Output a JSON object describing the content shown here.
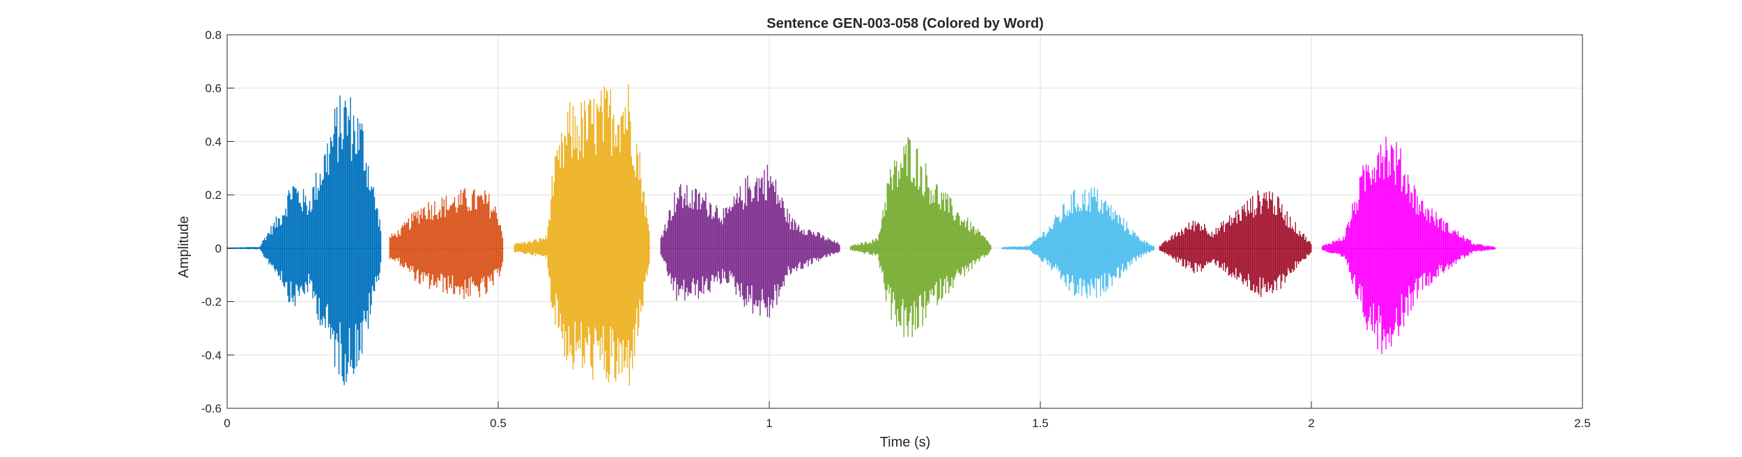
{
  "chart_data": {
    "type": "line",
    "title": "Sentence GEN-003-058 (Colored by Word)",
    "xlabel": "Time (s)",
    "ylabel": "Amplitude",
    "xlim": [
      0,
      2.5
    ],
    "ylim": [
      -0.6,
      0.8
    ],
    "xticks": [
      0,
      0.5,
      1,
      1.5,
      2,
      2.5
    ],
    "xtick_labels": [
      "0",
      "0.5",
      "1",
      "1.5",
      "2",
      "2.5"
    ],
    "yticks": [
      -0.6,
      -0.4,
      -0.2,
      0,
      0.2,
      0.4,
      0.6,
      0.8
    ],
    "ytick_labels": [
      "-0.6",
      "-0.4",
      "-0.2",
      "0",
      "0.2",
      "0.4",
      "0.6",
      "0.8"
    ],
    "grid": true,
    "series": [
      {
        "color": "#0072BD",
        "t_start": 0.0,
        "t_end": 0.285,
        "envelope": [
          [
            0.0,
            0.003
          ],
          [
            0.06,
            0.006
          ],
          [
            0.07,
            0.05
          ],
          [
            0.1,
            0.15
          ],
          [
            0.12,
            0.28
          ],
          [
            0.15,
            0.2
          ],
          [
            0.18,
            0.4
          ],
          [
            0.2,
            0.55
          ],
          [
            0.22,
            0.62
          ],
          [
            0.25,
            0.5
          ],
          [
            0.27,
            0.25
          ],
          [
            0.285,
            0.08
          ]
        ]
      },
      {
        "color": "#D95319",
        "t_start": 0.3,
        "t_end": 0.51,
        "envelope": [
          [
            0.3,
            0.05
          ],
          [
            0.32,
            0.08
          ],
          [
            0.36,
            0.18
          ],
          [
            0.4,
            0.2
          ],
          [
            0.44,
            0.23
          ],
          [
            0.48,
            0.22
          ],
          [
            0.5,
            0.15
          ],
          [
            0.51,
            0.05
          ]
        ]
      },
      {
        "color": "#EDB120",
        "t_start": 0.53,
        "t_end": 0.78,
        "envelope": [
          [
            0.53,
            0.02
          ],
          [
            0.56,
            0.03
          ],
          [
            0.59,
            0.05
          ],
          [
            0.6,
            0.3
          ],
          [
            0.63,
            0.55
          ],
          [
            0.66,
            0.57
          ],
          [
            0.7,
            0.62
          ],
          [
            0.74,
            0.65
          ],
          [
            0.76,
            0.4
          ],
          [
            0.78,
            0.05
          ]
        ]
      },
      {
        "color": "#7E2F8E",
        "t_start": 0.8,
        "t_end": 1.13,
        "envelope": [
          [
            0.8,
            0.05
          ],
          [
            0.83,
            0.25
          ],
          [
            0.88,
            0.22
          ],
          [
            0.92,
            0.15
          ],
          [
            0.96,
            0.28
          ],
          [
            1.0,
            0.33
          ],
          [
            1.04,
            0.12
          ],
          [
            1.1,
            0.05
          ],
          [
            1.13,
            0.02
          ]
        ]
      },
      {
        "color": "#77AC30",
        "t_start": 1.15,
        "t_end": 1.41,
        "envelope": [
          [
            1.15,
            0.01
          ],
          [
            1.2,
            0.04
          ],
          [
            1.22,
            0.3
          ],
          [
            1.26,
            0.45
          ],
          [
            1.3,
            0.28
          ],
          [
            1.35,
            0.15
          ],
          [
            1.4,
            0.04
          ],
          [
            1.41,
            0.01
          ]
        ]
      },
      {
        "color": "#4DBEEE",
        "t_start": 1.43,
        "t_end": 1.71,
        "envelope": [
          [
            1.43,
            0.005
          ],
          [
            1.48,
            0.01
          ],
          [
            1.52,
            0.1
          ],
          [
            1.56,
            0.22
          ],
          [
            1.6,
            0.24
          ],
          [
            1.64,
            0.15
          ],
          [
            1.68,
            0.05
          ],
          [
            1.71,
            0.01
          ]
        ]
      },
      {
        "color": "#A2142F",
        "t_start": 1.72,
        "t_end": 2.0,
        "envelope": [
          [
            1.72,
            0.01
          ],
          [
            1.76,
            0.08
          ],
          [
            1.79,
            0.12
          ],
          [
            1.82,
            0.07
          ],
          [
            1.86,
            0.15
          ],
          [
            1.92,
            0.25
          ],
          [
            1.97,
            0.1
          ],
          [
            2.0,
            0.02
          ]
        ]
      },
      {
        "color": "#FF00FF",
        "t_start": 2.02,
        "t_end": 2.34,
        "envelope": [
          [
            2.02,
            0.01
          ],
          [
            2.06,
            0.05
          ],
          [
            2.08,
            0.2
          ],
          [
            2.1,
            0.35
          ],
          [
            2.13,
            0.48
          ],
          [
            2.16,
            0.4
          ],
          [
            2.2,
            0.2
          ],
          [
            2.25,
            0.1
          ],
          [
            2.3,
            0.02
          ],
          [
            2.34,
            0.005
          ]
        ]
      }
    ]
  }
}
